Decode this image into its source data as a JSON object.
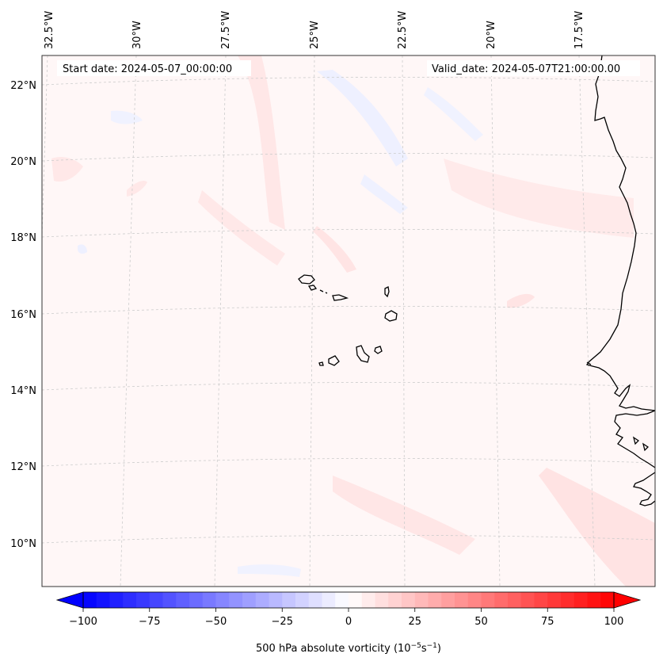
{
  "header": {
    "start_date": "Start date: 2024-05-07_00:00:00",
    "valid_date": "Valid_date: 2024-05-07T21:00:00.00"
  },
  "map": {
    "longitude_labels": [
      "32.5°W",
      "30°W",
      "27.5°W",
      "25°W",
      "22.5°W",
      "20°W",
      "17.5°W"
    ],
    "latitude_labels": [
      "22°N",
      "20°N",
      "18°N",
      "16°N",
      "14°N",
      "12°N",
      "10°N"
    ],
    "gridlines": true,
    "field_colors": {
      "positive": "#ff0000",
      "negative": "#0000ff",
      "neutral": "#ffffff"
    },
    "features": [
      "cabo-verde-islands",
      "west-africa-coastline"
    ]
  },
  "colorbar": {
    "label_prefix": "500 hPa absolute vorticity (10",
    "label_exp1": "−5",
    "label_mid": "s",
    "label_exp2": "−1",
    "label_suffix": ")",
    "min": -100,
    "max": 100,
    "step": 5,
    "extend": "both",
    "ticks": [
      "−100",
      "−75",
      "−50",
      "−25",
      "0",
      "25",
      "50",
      "75",
      "100"
    ]
  }
}
